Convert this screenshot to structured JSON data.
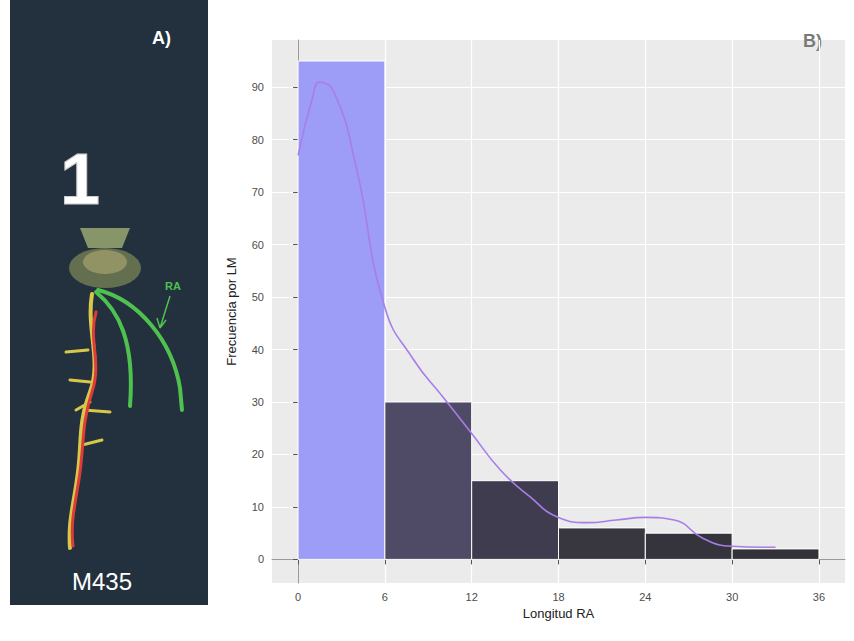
{
  "photo": {
    "panel_label": "A)",
    "plant_number": "1",
    "root_label": "RA",
    "sample": "M435"
  },
  "chart_data": {
    "type": "histogram",
    "annotations": [
      "B)"
    ],
    "x_label": "Longitud RA",
    "y_label": "Frecuencia por LM",
    "bins": [
      0,
      6,
      12,
      18,
      24,
      30,
      36
    ],
    "values": [
      95,
      30,
      15,
      6,
      5,
      2
    ],
    "colors": [
      "#9d9cf7",
      "#4f4a65",
      "#3f3c50",
      "#38363f",
      "#35333c",
      "#333238"
    ],
    "curve": {
      "type": "line",
      "color": "#a87de8",
      "x": [
        0,
        1,
        1.5,
        2.5,
        4,
        6,
        8,
        10,
        12,
        14,
        16,
        18,
        20,
        22,
        24,
        26,
        28,
        30,
        33
      ],
      "values": [
        77,
        88,
        91,
        89,
        75,
        48,
        38,
        31,
        24,
        17,
        12,
        8,
        7,
        7.5,
        8,
        7.5,
        4,
        2.5,
        2.3
      ]
    },
    "xlim": [
      -1.8,
      37.8
    ],
    "xticks": [
      0,
      6,
      12,
      18,
      24,
      30,
      36
    ],
    "ylim": [
      -4.5,
      99
    ],
    "yticks": [
      0,
      10,
      20,
      30,
      40,
      50,
      60,
      70,
      80,
      90
    ],
    "grid": true
  }
}
